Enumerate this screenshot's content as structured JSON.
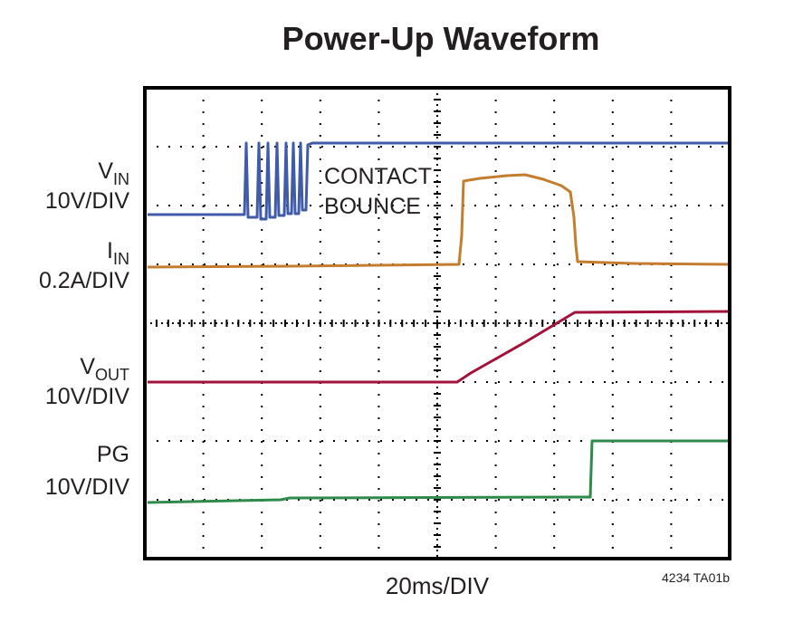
{
  "title": "Power-Up Waveform",
  "channels": [
    {
      "symbol": "V",
      "subscript": "IN",
      "scale": "10V/DIV"
    },
    {
      "symbol": "I",
      "subscript": "IN",
      "scale": "0.2A/DIV"
    },
    {
      "symbol": "V",
      "subscript": "OUT",
      "scale": "10V/DIV"
    },
    {
      "symbol": "PG",
      "scale": "10V/DIV"
    }
  ],
  "annotation": [
    "CONTACT",
    "BOUNCE"
  ],
  "x_label": "20ms/DIV",
  "figure_id": "4234 TA01b"
}
